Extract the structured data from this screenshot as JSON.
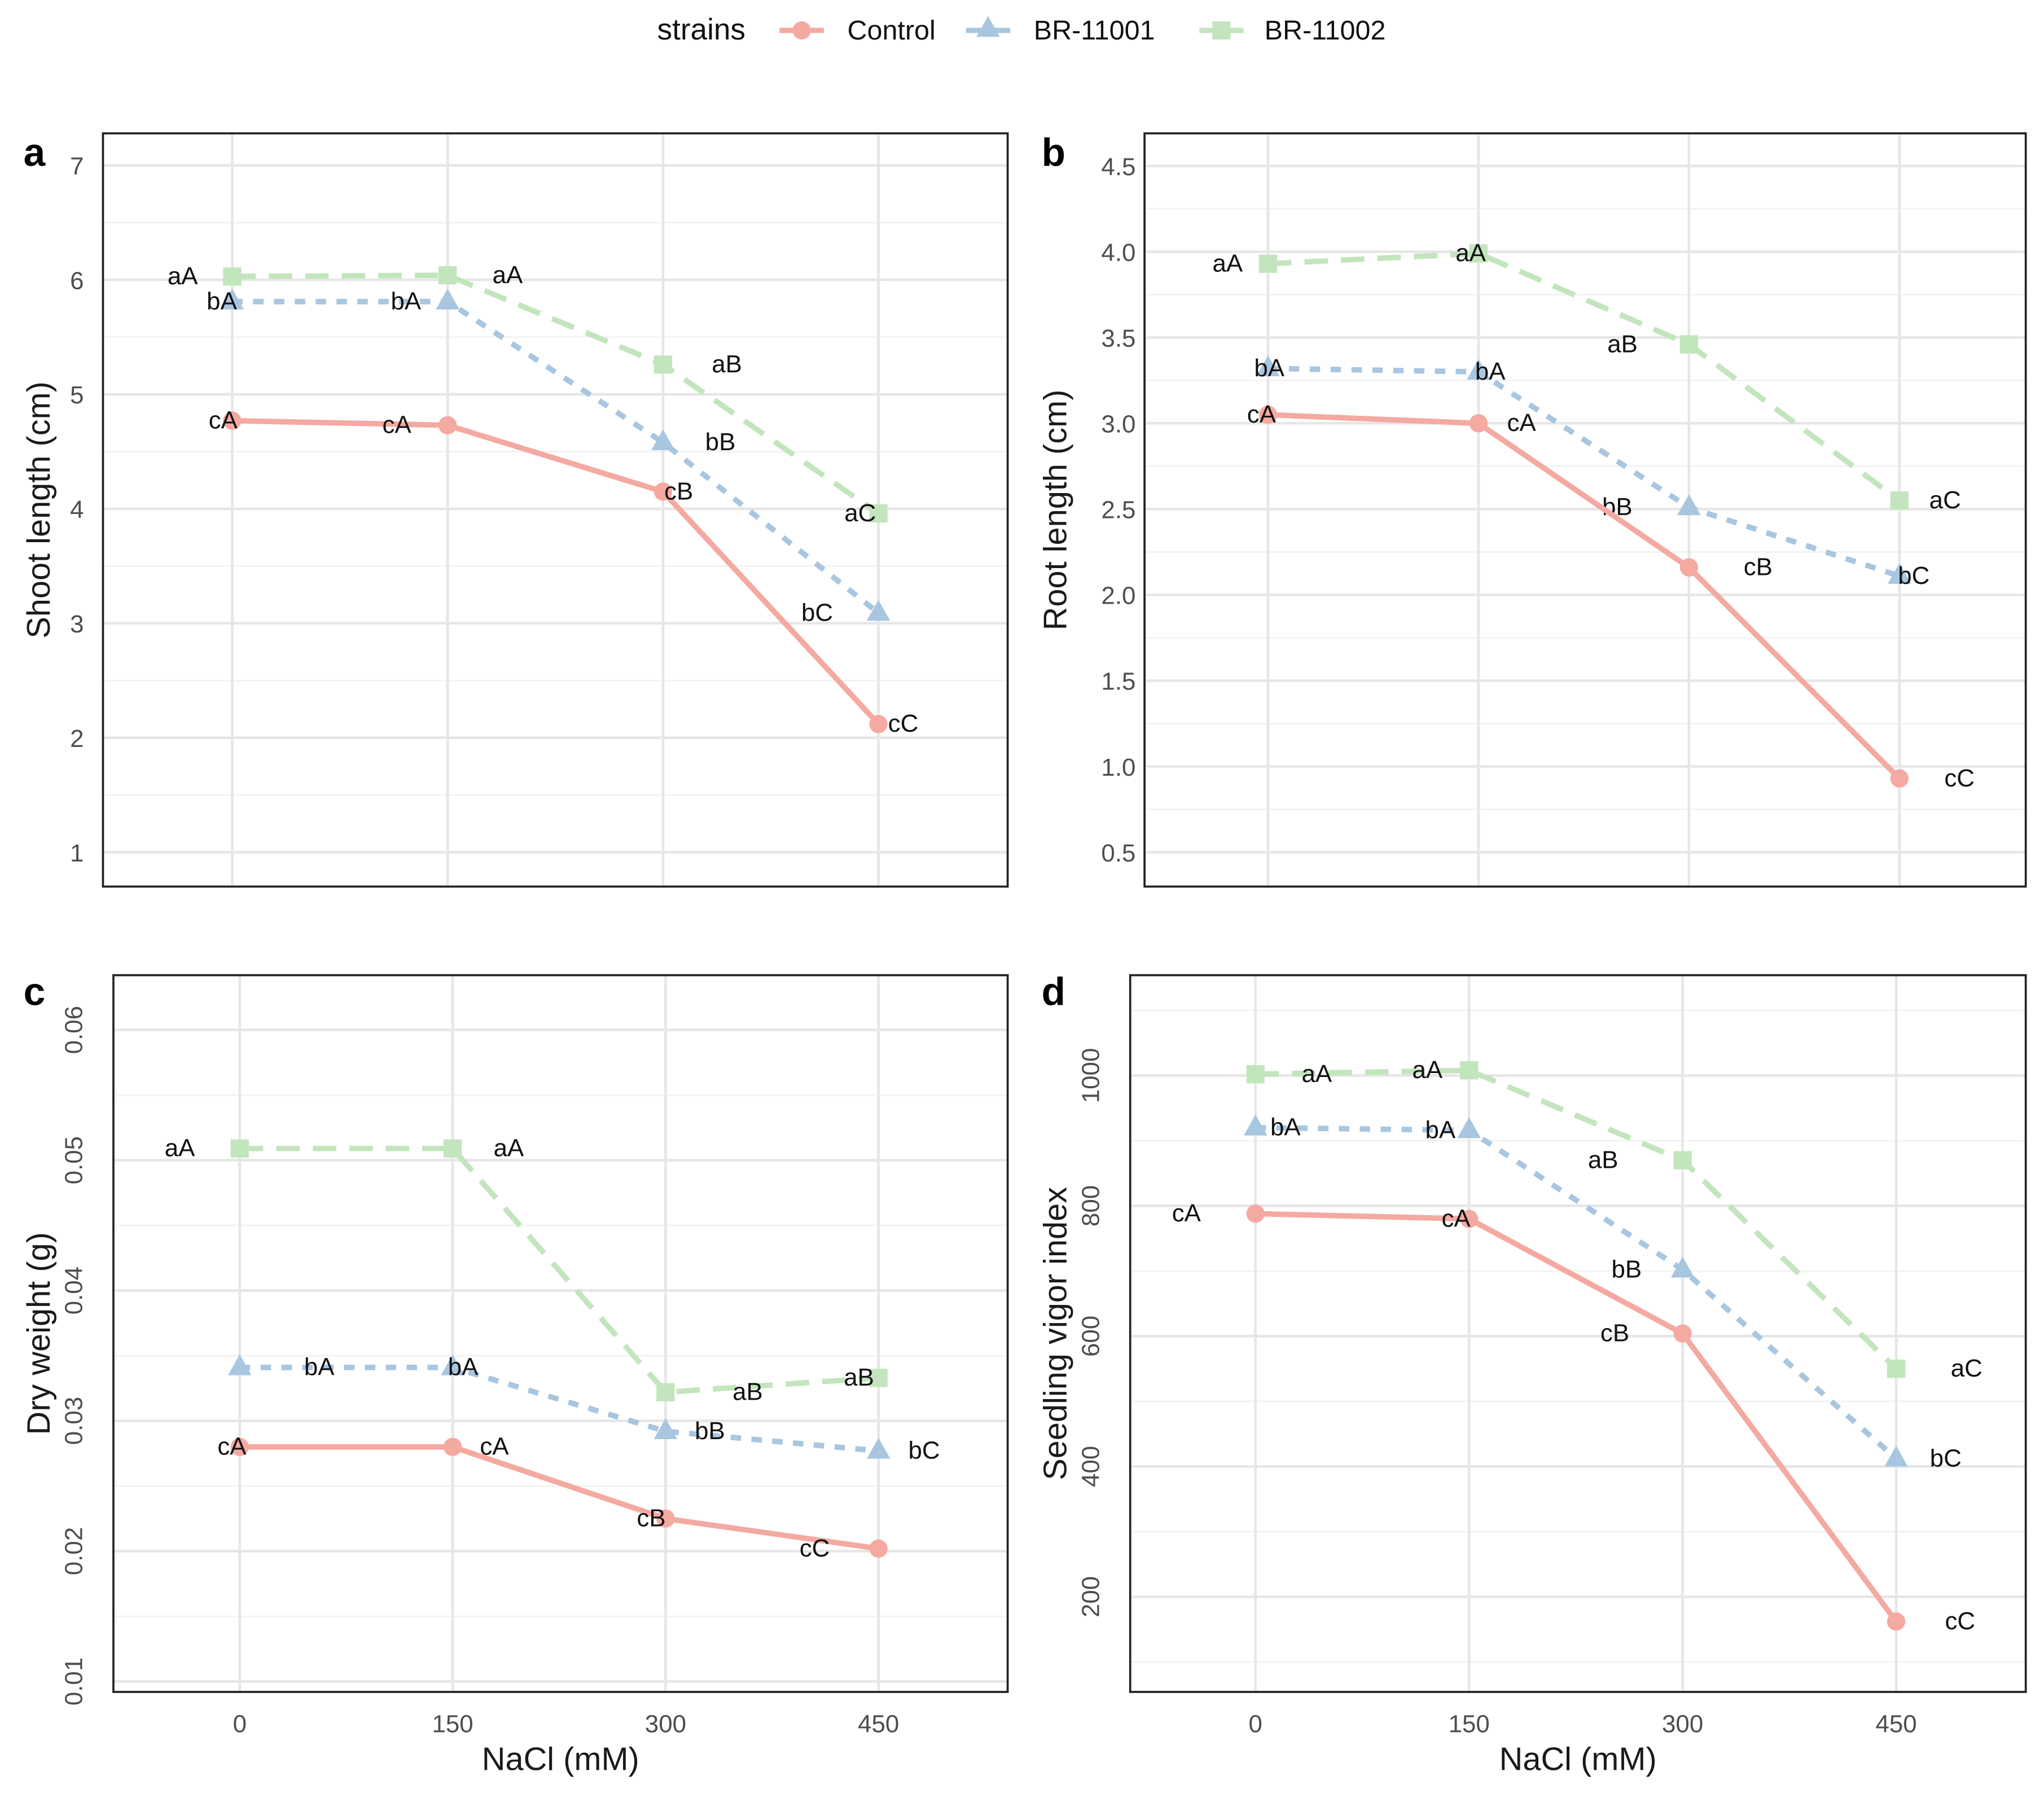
{
  "legend": {
    "title": "strains",
    "items": [
      {
        "name": "Control",
        "color": "#F4A9A1",
        "marker": "circle",
        "line": "solid"
      },
      {
        "name": "BR-11001",
        "color": "#A8C6E0",
        "marker": "triangle",
        "line": "dotted"
      },
      {
        "name": "BR-11002",
        "color": "#C3E5BD",
        "marker": "square",
        "line": "dashed"
      }
    ]
  },
  "chart_data": [
    {
      "type": "line",
      "panel": "a",
      "title": "",
      "xlabel": "",
      "ylabel": "Shoot length (cm)",
      "x": [
        0,
        150,
        300,
        450
      ],
      "x_ticks_shown": false,
      "xlim": [
        -90,
        540
      ],
      "ylim": [
        0.7,
        7.28
      ],
      "yticks": [
        1,
        2,
        3,
        4,
        5,
        6,
        7
      ],
      "ytick_labels": [
        "1",
        "2",
        "3",
        "4",
        "5",
        "6",
        "7"
      ],
      "grid": true,
      "series": [
        {
          "name": "Control",
          "values": [
            4.77,
            4.73,
            4.15,
            2.12
          ],
          "labels": [
            "cA",
            "cA",
            "cB",
            "cC"
          ]
        },
        {
          "name": "BR-11001",
          "values": [
            5.81,
            5.81,
            4.58,
            3.09
          ],
          "labels": [
            "bA",
            "bA",
            "bB",
            "bC"
          ]
        },
        {
          "name": "BR-11002",
          "values": [
            6.03,
            6.04,
            5.26,
            3.96
          ],
          "labels": [
            "aA",
            "aA",
            "aB",
            "aC"
          ]
        }
      ]
    },
    {
      "type": "line",
      "panel": "b",
      "title": "",
      "xlabel": "",
      "ylabel": "Root length (cm)",
      "x": [
        0,
        150,
        300,
        450
      ],
      "x_ticks_shown": false,
      "xlim": [
        -88,
        540
      ],
      "ylim": [
        0.3,
        4.69
      ],
      "yticks": [
        0.5,
        1.0,
        1.5,
        2.0,
        2.5,
        3.0,
        3.5,
        4.0,
        4.5
      ],
      "ytick_labels": [
        "0.5",
        "1.0",
        "1.5",
        "2.0",
        "2.5",
        "3.0",
        "3.5",
        "4.0",
        "4.5"
      ],
      "grid": true,
      "series": [
        {
          "name": "Control",
          "values": [
            3.05,
            3.0,
            2.16,
            0.93
          ],
          "labels": [
            "cA",
            "cA",
            "cB",
            "cC"
          ]
        },
        {
          "name": "BR-11001",
          "values": [
            3.32,
            3.3,
            2.51,
            2.11
          ],
          "labels": [
            "bA",
            "bA",
            "bB",
            "bC"
          ]
        },
        {
          "name": "BR-11002",
          "values": [
            3.93,
            3.99,
            3.46,
            2.55
          ],
          "labels": [
            "aA",
            "aA",
            "aB",
            "aC"
          ]
        }
      ]
    },
    {
      "type": "line",
      "panel": "c",
      "title": "",
      "xlabel": "NaCl (mM)",
      "ylabel": "Dry weight (g)",
      "x": [
        0,
        150,
        300,
        450
      ],
      "x_ticks_shown": true,
      "xtick_labels": [
        "0",
        "150",
        "300",
        "450"
      ],
      "xlim": [
        -89,
        541
      ],
      "ylim": [
        0.0092,
        0.0642
      ],
      "yticks": [
        0.01,
        0.02,
        0.03,
        0.04,
        0.05,
        0.06
      ],
      "ytick_labels": [
        "0.01",
        "0.02",
        "0.03",
        "0.04",
        "0.05",
        "0.06"
      ],
      "grid": true,
      "series": [
        {
          "name": "Control",
          "values": [
            0.028,
            0.028,
            0.0225,
            0.0202
          ],
          "labels": [
            "cA",
            "cA",
            "cB",
            "cC"
          ]
        },
        {
          "name": "BR-11001",
          "values": [
            0.0341,
            0.0341,
            0.0292,
            0.0277
          ],
          "labels": [
            "bA",
            "bA",
            "bB",
            "bC"
          ]
        },
        {
          "name": "BR-11002",
          "values": [
            0.0509,
            0.0509,
            0.0322,
            0.0333
          ],
          "labels": [
            "aA",
            "aA",
            "aB",
            "aB"
          ]
        }
      ]
    },
    {
      "type": "line",
      "panel": "d",
      "title": "",
      "xlabel": "NaCl (mM)",
      "ylabel": "Seedling vigor index",
      "x": [
        0,
        150,
        300,
        450
      ],
      "x_ticks_shown": true,
      "xtick_labels": [
        "0",
        "150",
        "300",
        "450"
      ],
      "xlim": [
        -88,
        541
      ],
      "ylim": [
        54,
        1154
      ],
      "yticks": [
        200,
        400,
        600,
        800,
        1000
      ],
      "ytick_labels": [
        "200",
        "400",
        "600",
        "800",
        "1000"
      ],
      "grid": true,
      "series": [
        {
          "name": "Control",
          "values": [
            788,
            780,
            604,
            162
          ],
          "labels": [
            "cA",
            "cA",
            "cB",
            "cC"
          ]
        },
        {
          "name": "BR-11001",
          "values": [
            920,
            916,
            702,
            412
          ],
          "labels": [
            "bA",
            "bA",
            "bB",
            "bC"
          ]
        },
        {
          "name": "BR-11002",
          "values": [
            1002,
            1008,
            870,
            550
          ],
          "labels": [
            "aA",
            "aA",
            "aB",
            "aC"
          ]
        }
      ]
    }
  ]
}
